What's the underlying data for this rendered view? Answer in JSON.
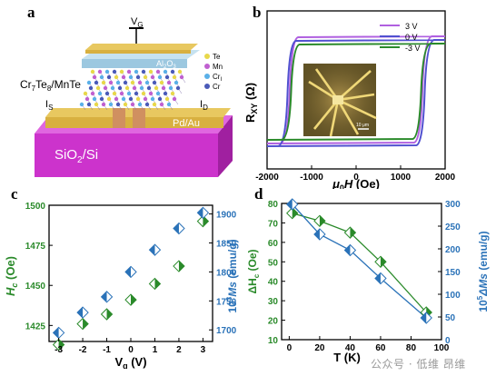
{
  "panels": {
    "a": {
      "label": "a",
      "gate": "V",
      "gate_sub": "G",
      "al2o3": "Al",
      "al2o3_sub1": "2",
      "al2o3_mid": "O",
      "al2o3_sub2": "3",
      "legend": [
        "Te",
        "Mn",
        "Cr",
        "Cr"
      ],
      "legend_sub": [
        "",
        "",
        "I",
        ""
      ],
      "heterostructure": "Cr",
      "hs_sub1": "7",
      "hs_mid": "Te",
      "hs_sub2": "8",
      "hs_tail": "/MnTe",
      "source": "I",
      "source_sub": "S",
      "drain": "I",
      "drain_sub": "D",
      "contact": "Pd/Au",
      "substrate": "SiO",
      "substrate_sub": "2",
      "substrate_tail": "/Si",
      "colors": {
        "te": "#e8d84a",
        "mn": "#c060d0",
        "cr1": "#5ab0e8",
        "cr2": "#4a5ab8",
        "substrate": "#cc33cc",
        "contact": "#d8b040",
        "dielectric": "#9cc8e0"
      }
    },
    "b": {
      "label": "b",
      "ylabel": "R",
      "ylabel_sub": "XY",
      "ylabel_unit": " (Ω)",
      "xlabel_mu": "μ",
      "xlabel_sub": "0",
      "xlabel_h": "H",
      "xlabel_unit": " (Oe)",
      "xticks": [
        "-2000",
        "-1000",
        "0",
        "1000",
        "2000"
      ],
      "legend": [
        "3 V",
        "0 V",
        "-3 V"
      ],
      "scale_bar": "10 μm",
      "colors": [
        "#b060e0",
        "#5050d0",
        "#2a8a2a"
      ]
    },
    "c": {
      "label": "c",
      "ylabel_left": "H",
      "ylabel_left_sub": "c",
      "ylabel_left_unit": " (Oe)",
      "ylabel_right_pre": "10",
      "ylabel_right_sup": "3",
      "ylabel_right_mid": "Ms",
      "ylabel_right_unit": " (emu/g)",
      "xlabel": "V",
      "xlabel_sub": "g",
      "xlabel_unit": " (V)",
      "left_ticks": [
        "1425",
        "1450",
        "1475",
        "1500"
      ],
      "right_ticks": [
        "1700",
        "1750",
        "1800",
        "1850",
        "1900"
      ],
      "xticks": [
        "-3",
        "-2",
        "-1",
        "0",
        "1",
        "2",
        "3"
      ],
      "left_color": "#2a8a2a",
      "right_color": "#2a72b8"
    },
    "d": {
      "label": "d",
      "ylabel_left": "ΔH",
      "ylabel_left_sub": "c",
      "ylabel_left_unit": " (Oe)",
      "ylabel_right_pre": "10",
      "ylabel_right_sup": "5",
      "ylabel_right_mid": "ΔMs",
      "ylabel_right_unit": " (emu/g)",
      "xlabel": "T",
      "xlabel_unit": " (K)",
      "left_ticks": [
        "10",
        "20",
        "30",
        "40",
        "50",
        "60",
        "70",
        "80"
      ],
      "right_ticks": [
        "0",
        "50",
        "100",
        "150",
        "200",
        "250",
        "300"
      ],
      "xticks": [
        "0",
        "20",
        "40",
        "60",
        "80",
        "100"
      ],
      "left_color": "#2a8a2a",
      "right_color": "#2a72b8"
    }
  },
  "chart_data": [
    {
      "type": "line",
      "panel": "b",
      "xlim": [
        -2000,
        2000
      ],
      "series": [
        {
          "name": "3 V",
          "coercive_field": 1450
        },
        {
          "name": "0 V",
          "coercive_field": 1500
        },
        {
          "name": "-3 V",
          "coercive_field": 1420
        }
      ]
    },
    {
      "type": "scatter",
      "panel": "c",
      "x": [
        -3,
        -2,
        -1,
        0,
        1,
        2,
        3
      ],
      "ylim_left": [
        1415,
        1500
      ],
      "ylim_right": [
        1680,
        1915
      ],
      "series": [
        {
          "axis": "left",
          "values": [
            1413,
            1426,
            1432,
            1441,
            1451,
            1462,
            1490
          ]
        },
        {
          "axis": "right",
          "values": [
            1695,
            1730,
            1757,
            1800,
            1838,
            1875,
            1902
          ]
        }
      ]
    },
    {
      "type": "line",
      "panel": "d",
      "x": [
        2,
        20,
        40,
        60,
        90
      ],
      "xlim": [
        -5,
        100
      ],
      "ylim_left": [
        10,
        80
      ],
      "ylim_right": [
        0,
        300
      ],
      "series": [
        {
          "axis": "left",
          "values": [
            75,
            71,
            65,
            50,
            24
          ]
        },
        {
          "axis": "right",
          "values": [
            298,
            232,
            197,
            135,
            48
          ]
        }
      ]
    }
  ],
  "watermark": "公众号 · 低维 昂维"
}
